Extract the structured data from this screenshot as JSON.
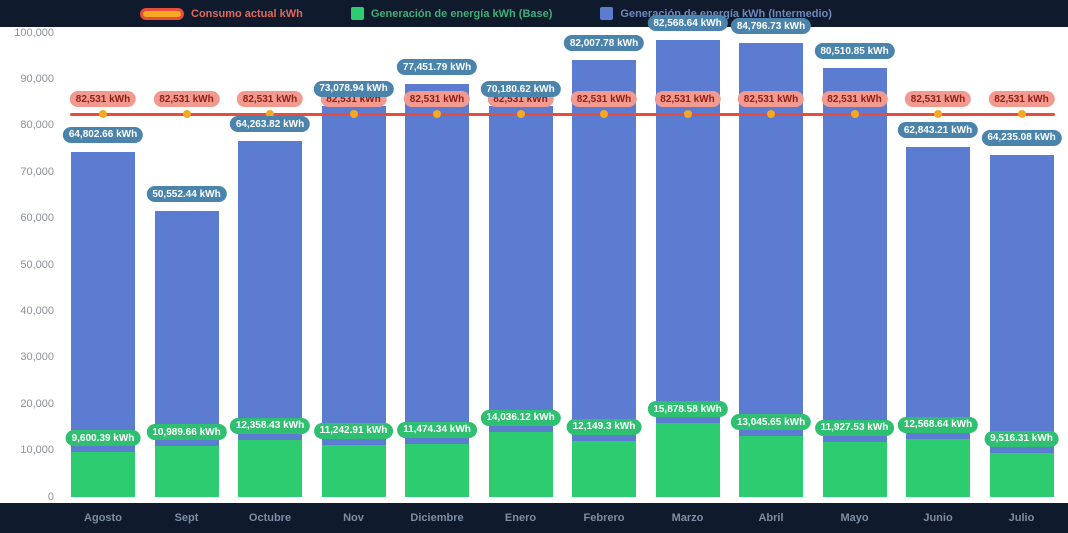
{
  "legend": {
    "items": [
      {
        "label": "Consumo actual kWh",
        "type": "line",
        "color": "#e74c3c",
        "fill": "#f6a823",
        "text_color": "#e0685e"
      },
      {
        "label": "Generación de energía kWh (Base)",
        "type": "box",
        "color": "#2ecc71",
        "text_color": "#3fae74"
      },
      {
        "label": "Generación de energía kWh (Intermedio)",
        "type": "box",
        "color": "#5b7cd0",
        "text_color": "#6f87b8"
      }
    ]
  },
  "chart_data": {
    "type": "bar",
    "stacked": true,
    "title": "",
    "xlabel": "",
    "ylabel": "",
    "grid": false,
    "legend_position": "top",
    "ylim": [
      0,
      100000
    ],
    "categories": [
      "Agosto",
      "Sept",
      "Octubre",
      "Nov",
      "Diciembre",
      "Enero",
      "Febrero",
      "Marzo",
      "Abril",
      "Mayo",
      "Junio",
      "Julio"
    ],
    "yticks": [
      {
        "value": 0,
        "label": "0"
      },
      {
        "value": 10000,
        "label": "10,000"
      },
      {
        "value": 20000,
        "label": "20,000"
      },
      {
        "value": 30000,
        "label": "30,000"
      },
      {
        "value": 40000,
        "label": "40,000"
      },
      {
        "value": 50000,
        "label": "50,000"
      },
      {
        "value": 60000,
        "label": "60,000"
      },
      {
        "value": 70000,
        "label": "70,000"
      },
      {
        "value": 80000,
        "label": "80,000"
      },
      {
        "value": 90000,
        "label": "90,000"
      },
      {
        "value": 100000,
        "label": "100,000"
      }
    ],
    "series": [
      {
        "name": "Consumo actual kWh",
        "type": "line",
        "color": "#e74c3c",
        "marker_color": "#f6a823",
        "values": [
          82531,
          82531,
          82531,
          82531,
          82531,
          82531,
          82531,
          82531,
          82531,
          82531,
          82531,
          82531
        ],
        "labels": [
          "82,531 kWh",
          "82,531 kWh",
          "82,531 kWh",
          "82,531 kWh",
          "82,531 kWh",
          "82,531 kWh",
          "82,531 kWh",
          "82,531 kWh",
          "82,531 kWh",
          "82,531 kWh",
          "82,531 kWh",
          "82,531 kWh"
        ]
      },
      {
        "name": "Generación de energía kWh (Base)",
        "type": "bar",
        "color": "#2ecc71",
        "values": [
          9600.39,
          10989.66,
          12358.43,
          11242.91,
          11474.34,
          14036.12,
          12149.3,
          15878.58,
          13045.65,
          11927.53,
          12568.64,
          9516.31
        ],
        "labels": [
          "9,600.39 kWh",
          "10,989.66 kWh",
          "12,358.43 kWh",
          "11,242.91 kWh",
          "11,474.34 kWh",
          "14,036.12 kWh",
          "12,149.3 kWh",
          "15,878.58 kWh",
          "13,045.65 kWh",
          "11,927.53 kWh",
          "12,568.64 kWh",
          "9,516.31 kWh"
        ]
      },
      {
        "name": "Generación de energía kWh (Intermedio)",
        "type": "bar",
        "color": "#5b7cd0",
        "values": [
          64802.66,
          50552.44,
          64263.82,
          73078.94,
          77451.79,
          70180.62,
          82007.78,
          82568.64,
          84796.73,
          80510.85,
          62843.21,
          64235.08
        ],
        "labels": [
          "64,802.66 kWh",
          "50,552.44 kWh",
          "64,263.82 kWh",
          "73,078.94 kWh",
          "77,451.79 kWh",
          "70,180.62 kWh",
          "82,007.78 kWh",
          "82,568.64 kWh",
          "84,796.73 kWh",
          "80,510.85 kWh",
          "62,843.21 kWh",
          "64,235.08 kWh"
        ]
      }
    ]
  },
  "colors": {
    "background": "#0f1b2d",
    "panel": "#ffffff",
    "axis_text": "#8b909a",
    "month_text": "#7e8da3",
    "line": "#e74c3c",
    "marker": "#f6a823",
    "pill_blue_bg": "#4a84ad",
    "pill_green_bg": "#2fbf71",
    "pill_red_bg": "#f29a90",
    "pill_red_text": "#8e2015"
  }
}
